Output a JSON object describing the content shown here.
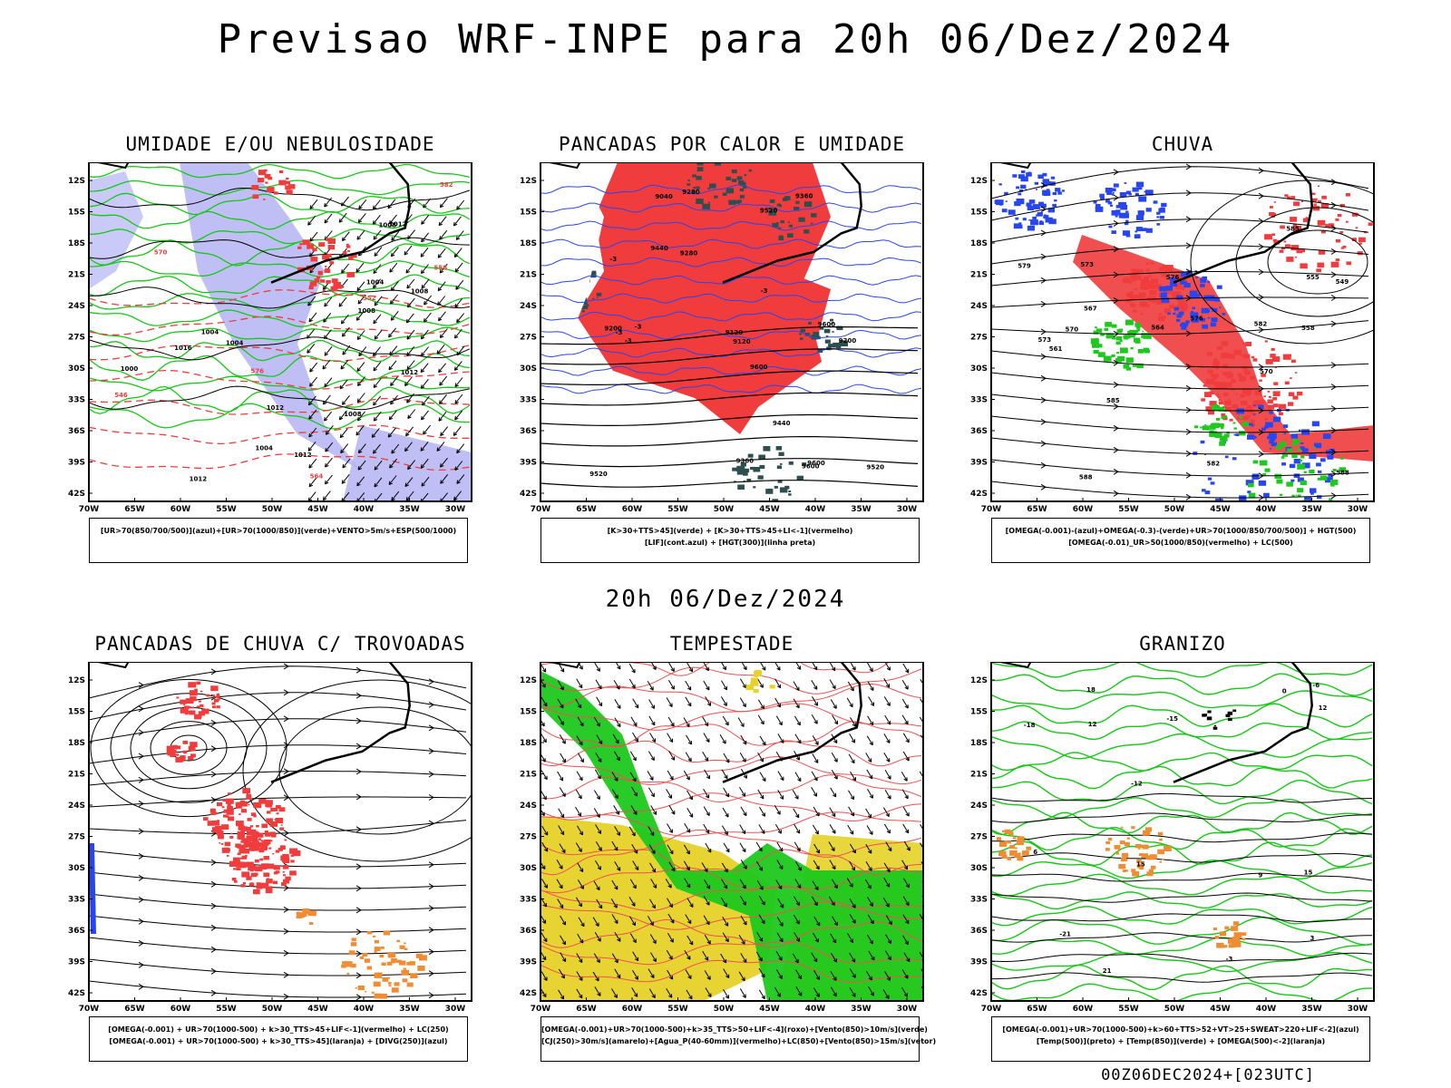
{
  "page": {
    "main_title": "Previsao WRF-INPE  para 20h 06/Dez/2024",
    "middle_title": "20h 06/Dez/2024",
    "footer": "00Z06DEC2024+[023UTC]"
  },
  "axes": {
    "lat_labels": [
      "12S",
      "15S",
      "18S",
      "21S",
      "24S",
      "27S",
      "30S",
      "33S",
      "36S",
      "39S",
      "42S"
    ],
    "lon_labels": [
      "70W",
      "65W",
      "60W",
      "55W",
      "50W",
      "45W",
      "40W",
      "35W",
      "30W"
    ]
  },
  "colors": {
    "blue_fill": "#b4b4f5",
    "green_line": "#16c816",
    "red_line": "#f03c3c",
    "red_fill": "#f03c3c",
    "dark_teal": "#2f4f4f",
    "blue_line": "#2846f0",
    "green_fill": "#1ec81e",
    "yellow_fill": "#e6d228",
    "orange": "#f08c32",
    "pink_line": "#f05050"
  },
  "panels": [
    {
      "title": "UMIDADE E/OU NEBULOSIDADE",
      "legend": [
        "[UR>70(850/700/500)](azul)+[UR>70(1000/850)](verde)+VENTO>5m/s+ESP(500/1000)"
      ],
      "contour_labels": [
        "1012",
        "1008",
        "1004",
        "1012",
        "1016",
        "1008",
        "1012",
        "1008",
        "1004",
        "1004",
        "1000",
        "1012",
        "1008",
        "1012",
        "1004",
        "576",
        "582",
        "570",
        "564",
        "558",
        "552",
        "546"
      ]
    },
    {
      "title": "PANCADAS POR CALOR E UMIDADE",
      "legend": [
        "[K>30+TTS>45](verde) + [K>30+TTS>45+LI<-1](vermelho)",
        "[LIF](cont.azul) + [HGT(300)](linha preta)"
      ],
      "contour_labels": [
        "9600",
        "9600",
        "9520",
        "9600",
        "9520",
        "9440",
        "9360",
        "9280",
        "9200",
        "9120",
        "9040",
        "9600",
        "9520",
        "9440",
        "9360",
        "9280",
        "9200",
        "9120",
        "-3",
        "-3",
        "-3",
        "-3",
        "-3"
      ]
    },
    {
      "title": "CHUVA",
      "legend": [
        "[OMEGA(-0.001)-(azul)+OMEGA(-0.3)-(verde)+UR>70(1000/850/700/500)] + HGT(500)",
        "[OMEGA(-0.01)_UR>50(1000/850)(vermelho) + LC(500)"
      ],
      "contour_labels": [
        "588",
        "585",
        "582",
        "579",
        "576",
        "573",
        "570",
        "567",
        "564",
        "561",
        "558",
        "555",
        "549",
        "576",
        "573",
        "570",
        "588",
        "585",
        "582"
      ]
    },
    {
      "title": "PANCADAS DE CHUVA C/ TROVOADAS",
      "legend": [
        "[OMEGA(-0.001) + UR>70(1000-500) + k>30_TTS>45+LIF<-1](vermelho) + LC(250)",
        "[OMEGA(-0.001) + UR>70(1000-500) + k>30_TTS>45](laranja) + [DIVG(250)](azul)"
      ],
      "contour_labels": []
    },
    {
      "title": "TEMPESTADE",
      "legend": [
        "[OMEGA(-0.001)+UR>70(1000-500)+k>35_TTS>50+LIF<-4](roxo)+[Vento(850)>10m/s](verde)",
        "[CJ(250)>30m/s](amarelo)+[Agua_P(40-60mm)](vermelho)+LC(850)+[Vento(850)>15m/s](vetor)"
      ],
      "contour_labels": []
    },
    {
      "title": "GRANIZO",
      "legend": [
        "[OMEGA(-0.001)+UR>70(1000-500)+k>60+TTS>52+VT>25+SWEAT>220+LIF<-2](azul)",
        "[Temp(500)](preto) + [Temp(850)](verde) + [OMEGA(500)<-2](laranja)"
      ],
      "contour_labels": [
        "12",
        "15",
        "18",
        "21",
        "9",
        "6",
        "3",
        "0",
        "-3",
        "12",
        "15",
        "-6",
        "-12",
        "-15",
        "-18",
        "-21"
      ]
    }
  ]
}
